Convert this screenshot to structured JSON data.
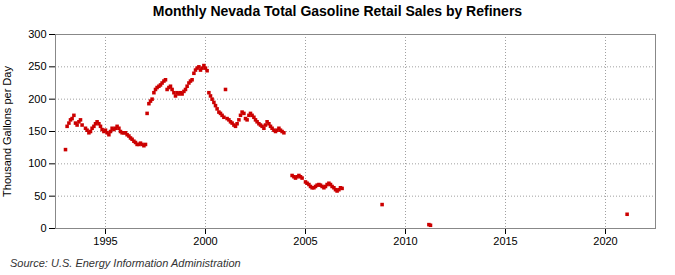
{
  "chart_data": {
    "type": "scatter",
    "title": "Monthly Nevada Total Gasoline Retail Sales by Refiners",
    "ylabel": "Thousand Gallons per Day",
    "source": "Source: U.S. Energy Information Administration",
    "color": "#cc0000",
    "marker": "square",
    "grid": true,
    "xlim": [
      1992.5,
      2022.5
    ],
    "ylim": [
      0,
      300
    ],
    "xticks": [
      1995,
      2000,
      2005,
      2010,
      2015,
      2020
    ],
    "yticks": [
      0,
      50,
      100,
      150,
      200,
      250,
      300
    ],
    "x": [
      1993.0,
      1993.08,
      1993.17,
      1993.25,
      1993.33,
      1993.42,
      1993.5,
      1993.58,
      1993.67,
      1993.75,
      1993.83,
      1994.0,
      1994.08,
      1994.17,
      1994.25,
      1994.33,
      1994.42,
      1994.5,
      1994.58,
      1994.67,
      1994.75,
      1994.83,
      1994.92,
      1995.0,
      1995.08,
      1995.17,
      1995.25,
      1995.33,
      1995.42,
      1995.5,
      1995.58,
      1995.67,
      1995.75,
      1995.83,
      1995.92,
      1996.0,
      1996.08,
      1996.17,
      1996.25,
      1996.33,
      1996.42,
      1996.5,
      1996.58,
      1996.67,
      1996.75,
      1996.83,
      1996.92,
      1997.0,
      1997.08,
      1997.17,
      1997.25,
      1997.33,
      1997.42,
      1997.5,
      1997.58,
      1997.67,
      1997.75,
      1997.83,
      1997.92,
      1998.0,
      1998.08,
      1998.17,
      1998.25,
      1998.33,
      1998.42,
      1998.5,
      1998.58,
      1998.67,
      1998.75,
      1998.83,
      1998.92,
      1999.0,
      1999.08,
      1999.17,
      1999.25,
      1999.33,
      1999.42,
      1999.5,
      1999.58,
      1999.67,
      1999.75,
      1999.83,
      1999.92,
      2000.0,
      2000.08,
      2000.17,
      2000.25,
      2000.33,
      2000.42,
      2000.5,
      2000.58,
      2000.67,
      2000.75,
      2000.83,
      2000.92,
      2001.0,
      2001.08,
      2001.17,
      2001.25,
      2001.33,
      2001.42,
      2001.5,
      2001.58,
      2001.67,
      2001.75,
      2001.83,
      2001.92,
      2002.0,
      2002.08,
      2002.17,
      2002.25,
      2002.33,
      2002.42,
      2002.5,
      2002.58,
      2002.67,
      2002.75,
      2002.83,
      2002.92,
      2003.0,
      2003.08,
      2003.17,
      2003.25,
      2003.33,
      2003.42,
      2003.5,
      2003.58,
      2003.67,
      2003.75,
      2003.83,
      2003.92,
      2004.33,
      2004.42,
      2004.5,
      2004.58,
      2004.67,
      2004.75,
      2004.83,
      2005.0,
      2005.08,
      2005.17,
      2005.25,
      2005.33,
      2005.42,
      2005.5,
      2005.58,
      2005.67,
      2005.75,
      2005.83,
      2005.92,
      2006.0,
      2006.08,
      2006.17,
      2006.25,
      2006.33,
      2006.42,
      2006.5,
      2006.58,
      2006.67,
      2006.75,
      2006.83,
      2008.83,
      2011.17,
      2011.25,
      2021.08
    ],
    "values": [
      122,
      158,
      163,
      168,
      170,
      175,
      163,
      160,
      165,
      168,
      160,
      155,
      152,
      148,
      150,
      155,
      158,
      162,
      165,
      162,
      158,
      153,
      150,
      152,
      148,
      145,
      150,
      155,
      153,
      155,
      158,
      155,
      150,
      148,
      148,
      148,
      145,
      143,
      140,
      138,
      135,
      133,
      130,
      130,
      132,
      130,
      128,
      130,
      178,
      193,
      197,
      200,
      210,
      215,
      218,
      220,
      222,
      225,
      228,
      230,
      215,
      218,
      220,
      215,
      210,
      205,
      210,
      208,
      210,
      208,
      212,
      215,
      220,
      225,
      228,
      230,
      240,
      245,
      248,
      250,
      245,
      248,
      252,
      248,
      244,
      210,
      205,
      200,
      195,
      190,
      185,
      180,
      178,
      175,
      172,
      215,
      170,
      168,
      165,
      163,
      160,
      158,
      162,
      168,
      175,
      180,
      178,
      170,
      168,
      175,
      178,
      175,
      172,
      168,
      165,
      162,
      160,
      158,
      155,
      160,
      165,
      162,
      158,
      155,
      152,
      150,
      152,
      155,
      152,
      150,
      148,
      82,
      80,
      78,
      80,
      82,
      80,
      78,
      72,
      70,
      68,
      65,
      63,
      63,
      65,
      67,
      68,
      67,
      65,
      63,
      65,
      68,
      70,
      68,
      65,
      63,
      60,
      58,
      60,
      63,
      62,
      37,
      6,
      5,
      22
    ]
  }
}
